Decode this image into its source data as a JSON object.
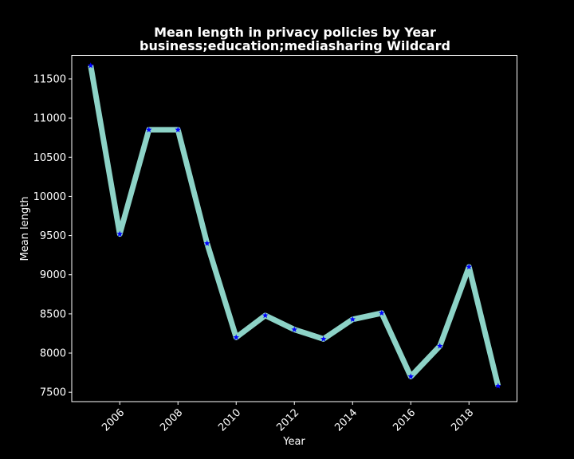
{
  "chart_data": {
    "type": "line",
    "title": "Mean length in privacy policies by Year",
    "subtitle": "business;education;mediasharing Wildcard",
    "xlabel": "Year",
    "ylabel": "Mean length",
    "x": [
      2005,
      2006,
      2007,
      2008,
      2009,
      2010,
      2011,
      2012,
      2013,
      2014,
      2015,
      2016,
      2017,
      2018,
      2019
    ],
    "series": [
      {
        "values": [
          11670,
          9520,
          10850,
          10850,
          9400,
          8200,
          8480,
          8300,
          8180,
          8430,
          8510,
          7700,
          8090,
          9100,
          7580
        ]
      }
    ],
    "xlim": [
      2004.35,
      2019.65
    ],
    "ylim": [
      7380,
      11800
    ],
    "xticks": [
      2006,
      2008,
      2010,
      2012,
      2014,
      2016,
      2018
    ],
    "yticks": [
      7500,
      8000,
      8500,
      9000,
      9500,
      10000,
      10500,
      11000,
      11500
    ],
    "grid": false,
    "background_color": "#000000",
    "line_color": "#8dd3c7",
    "marker": "star",
    "marker_color": "#0000ff",
    "axis_color": "#ffffff"
  }
}
